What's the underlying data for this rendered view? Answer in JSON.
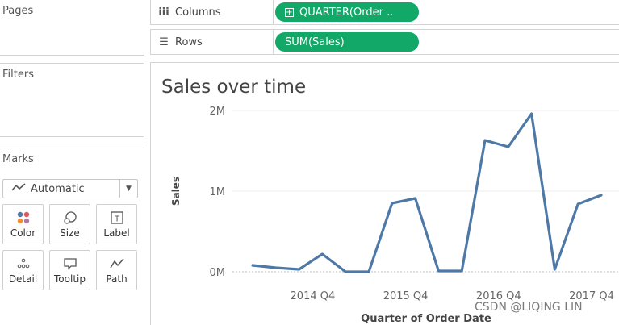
{
  "left_pane": {
    "pages_title": "Pages",
    "filters_title": "Filters",
    "marks": {
      "title": "Marks",
      "mark_type": "Automatic",
      "mark_type_icon": "line-mark-icon",
      "buttons": [
        {
          "label": "Color",
          "icon": "color-dots-icon"
        },
        {
          "label": "Size",
          "icon": "size-icon"
        },
        {
          "label": "Label",
          "icon": "label-icon"
        },
        {
          "label": "Detail",
          "icon": "detail-dots-icon"
        },
        {
          "label": "Tooltip",
          "icon": "tooltip-icon"
        },
        {
          "label": "Path",
          "icon": "path-icon"
        }
      ]
    }
  },
  "shelves": {
    "columns": {
      "label": "Columns",
      "icon": "columns-icon",
      "pill": "QUARTER(Order .."
    },
    "rows": {
      "label": "Rows",
      "icon": "rows-icon",
      "pill": "SUM(Sales)"
    }
  },
  "colors": {
    "pill": "#12a867",
    "line": "#4e79a7"
  },
  "viz": {
    "title": "Sales over time"
  },
  "chart_data": {
    "type": "line",
    "title": "Sales over time",
    "xlabel": "Quarter of Order Date",
    "ylabel": "Sales",
    "x_tick_labels": [
      "2014 Q4",
      "2015 Q4",
      "2016 Q4",
      "2017 Q4"
    ],
    "y_tick_labels": [
      "0M",
      "1M",
      "2M"
    ],
    "ylim": [
      0,
      2
    ],
    "y_unit": "M",
    "grid": true,
    "series": [
      {
        "values": [
          0.08,
          0.05,
          0.03,
          0.22,
          0.0,
          0.0,
          0.85,
          0.91,
          0.01,
          0.01,
          1.63,
          1.55,
          1.96,
          0.03,
          0.84,
          0.95
        ]
      }
    ]
  },
  "watermark": "CSDN @LIQING LIN"
}
